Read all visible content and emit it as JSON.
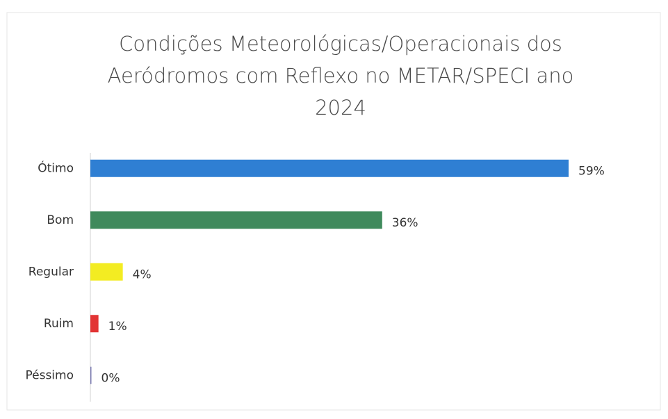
{
  "chart_data": {
    "type": "barh",
    "title": "Condições Meteorológicas/Operacionais dos Aeródromos com Reflexo no METAR/SPECI ano 2024",
    "categories": [
      "Ótimo",
      "Bom",
      "Regular",
      "Ruim",
      "Péssimo"
    ],
    "values": [
      59,
      36,
      4,
      1,
      0
    ],
    "value_labels": [
      "59%",
      "36%",
      "4%",
      "1%",
      "0%"
    ],
    "colors": [
      "#2f7fd3",
      "#3f8a5c",
      "#f3ec22",
      "#e23434",
      "#7a7ab0"
    ]
  }
}
